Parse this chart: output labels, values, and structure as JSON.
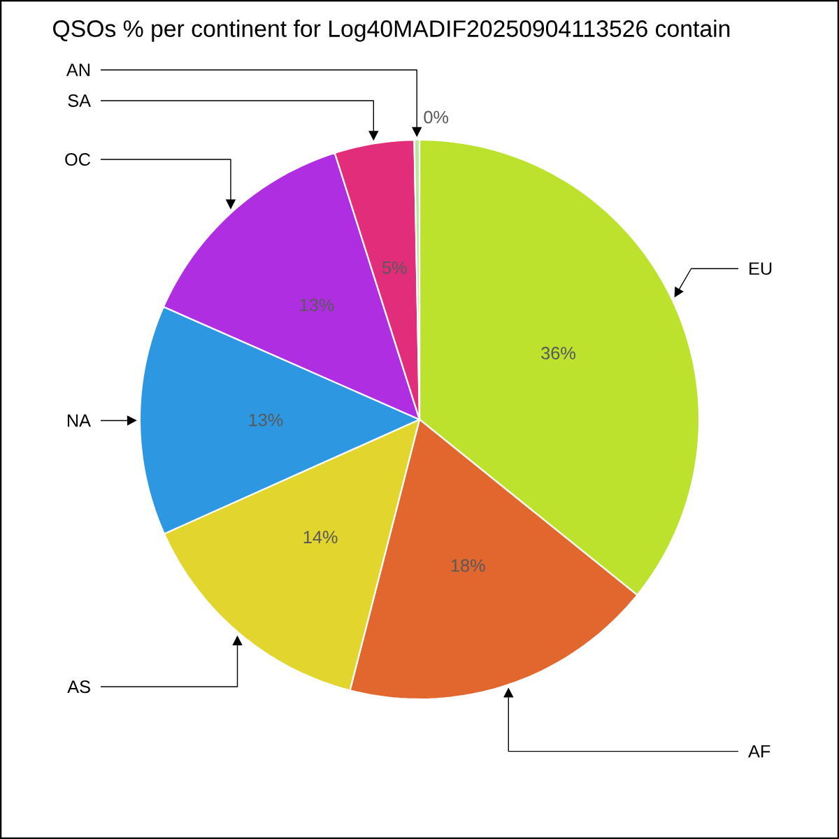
{
  "chart_data": {
    "type": "pie",
    "title": "QSOs % per continent for Log40MADIF20250904113526 contain",
    "categories": [
      "EU",
      "AF",
      "AS",
      "NA",
      "OC",
      "SA",
      "AN"
    ],
    "values": [
      35.8,
      18.2,
      14.3,
      13.3,
      13.5,
      4.6,
      0.3
    ],
    "value_labels": [
      "36%",
      "18%",
      "14%",
      "13%",
      "13%",
      "5%",
      "0%"
    ],
    "colors": [
      "#bde22e",
      "#e2672e",
      "#e2d52e",
      "#2e97e2",
      "#b02ee2",
      "#e22e7a",
      "#b8e6a0"
    ]
  }
}
